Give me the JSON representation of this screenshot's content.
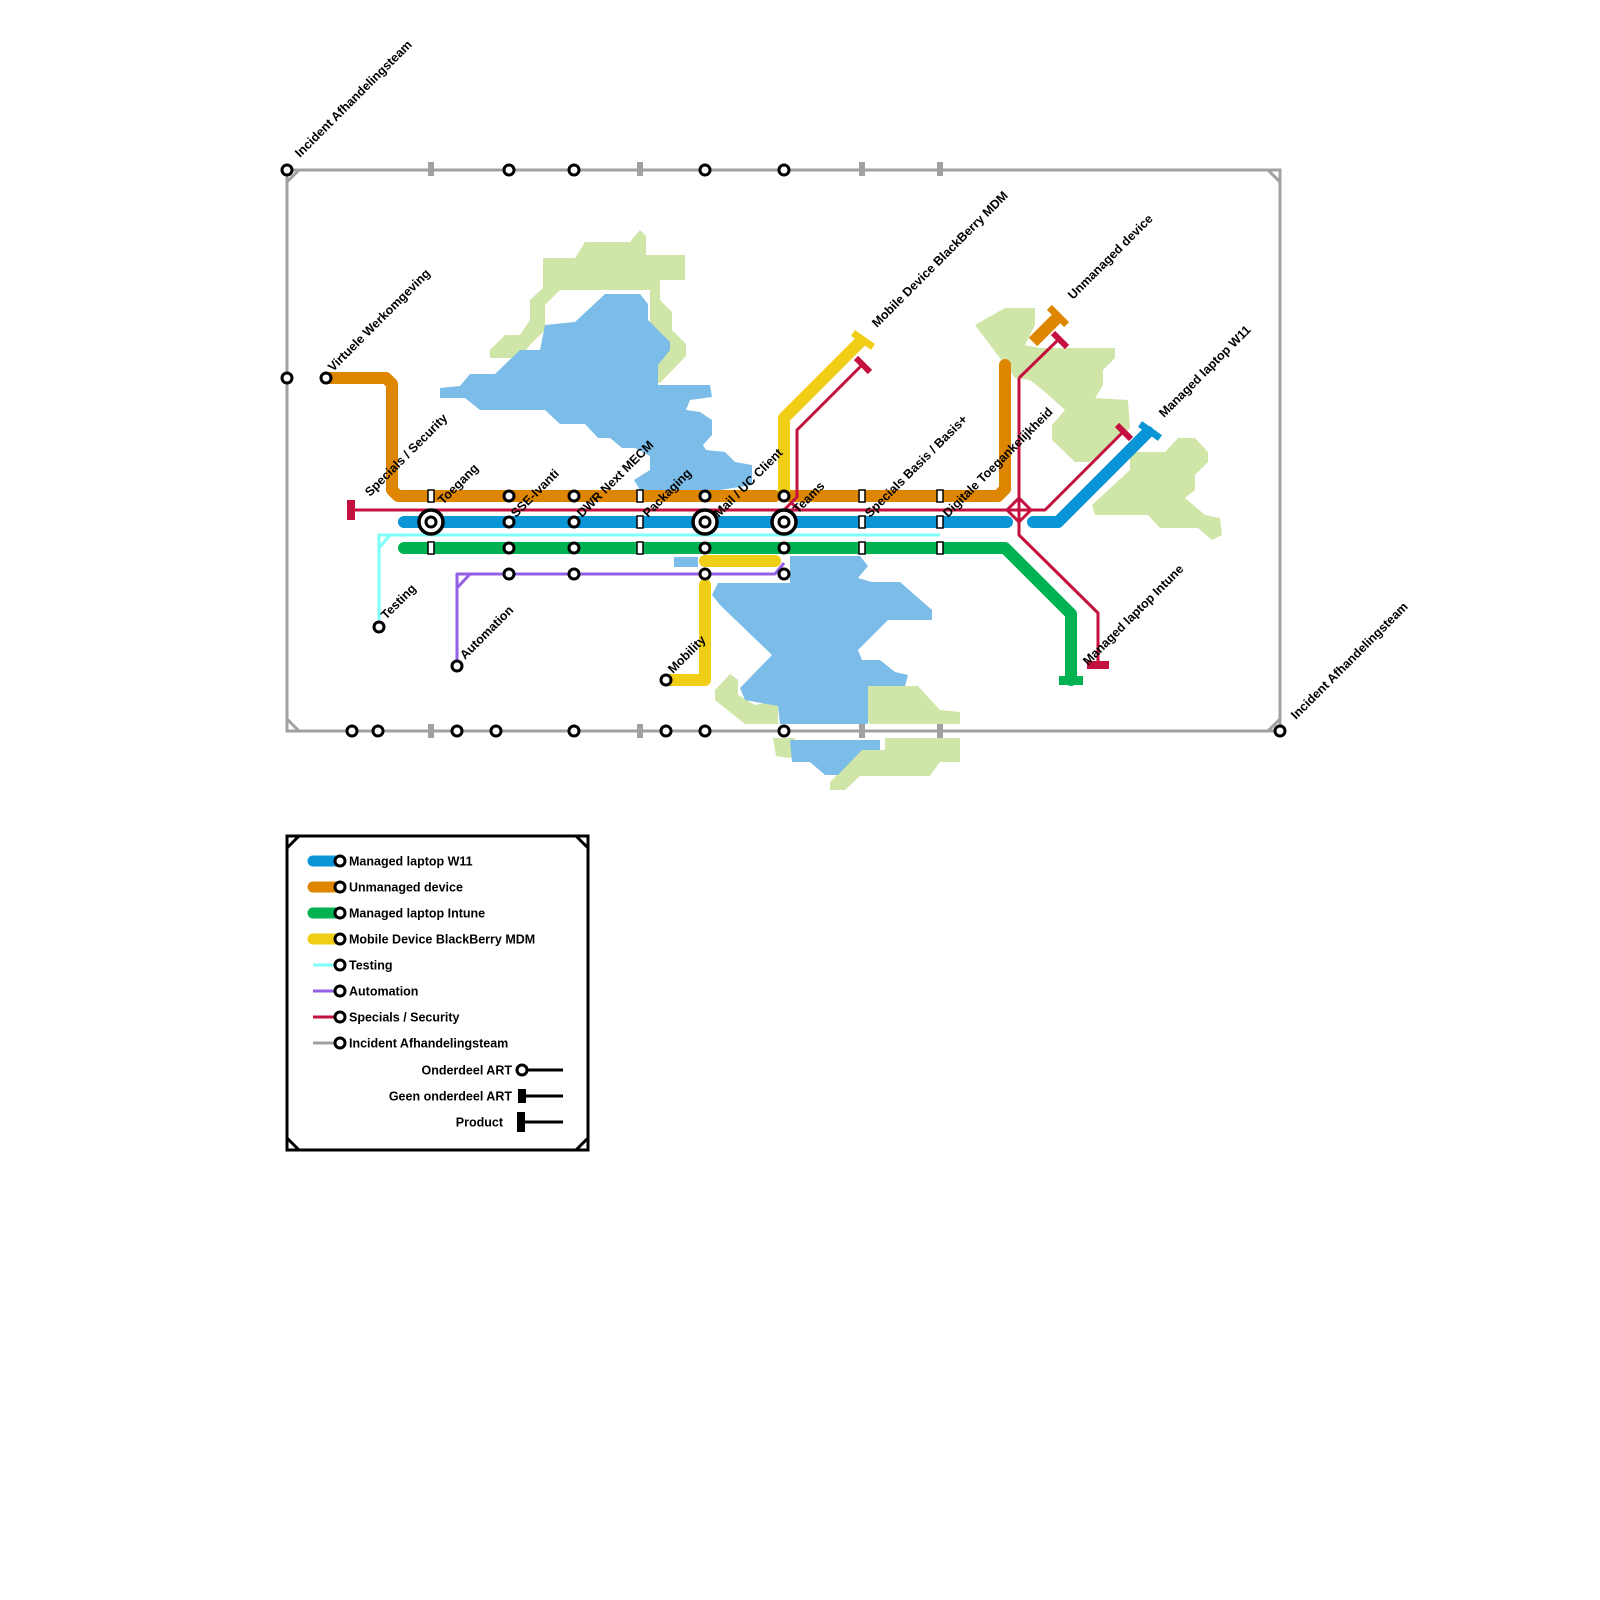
{
  "colors": {
    "managed_laptop_w11": "#0995d6",
    "unmanaged_device": "#df8600",
    "managed_laptop_intune": "#00b251",
    "mobile_device_blackberry": "#f0ce15",
    "testing": "#7ffffa",
    "automation": "#9460e6",
    "specials_security": "#c4113f",
    "incident": "#a1a1a1",
    "water": "#7bbde8",
    "land": "#d0e5a8"
  },
  "station_labels": [
    "Incident Afhandelingsteam",
    "Virtuele Werkomgeving",
    "Specials / Security",
    "Toegang",
    "SSE-Ivanti",
    "DWR Next MECM",
    "Packaging",
    "Mail / UC Client",
    "Teams",
    "Specials Basis / Basis+",
    "Digitale Toegankelijkheid",
    "Mobile Device BlackBerry MDM",
    "Unmanaged device",
    "Managed laptop W11",
    "Managed laptop Intune",
    "Testing",
    "Automation",
    "Mobility",
    "Incident Afhandelingsteam"
  ],
  "legend": {
    "lines": [
      {
        "label": "Managed laptop W11",
        "color": "#0995d6",
        "style": "thick"
      },
      {
        "label": "Unmanaged device",
        "color": "#df8600",
        "style": "thick"
      },
      {
        "label": "Managed laptop Intune",
        "color": "#00b251",
        "style": "thick"
      },
      {
        "label": "Mobile Device BlackBerry MDM",
        "color": "#f0ce15",
        "style": "thick"
      },
      {
        "label": "Testing",
        "color": "#7ffffa",
        "style": "thin"
      },
      {
        "label": "Automation",
        "color": "#9460e6",
        "style": "thin"
      },
      {
        "label": "Specials / Security",
        "color": "#c4113f",
        "style": "thin"
      },
      {
        "label": "Incident Afhandelingsteam",
        "color": "#a1a1a1",
        "style": "thin"
      }
    ],
    "symbols": [
      {
        "label": "Onderdeel ART",
        "symbol": "circle"
      },
      {
        "label": "Geen onderdeel ART",
        "symbol": "small-bar"
      },
      {
        "label": "Product",
        "symbol": "large-bar"
      }
    ]
  }
}
